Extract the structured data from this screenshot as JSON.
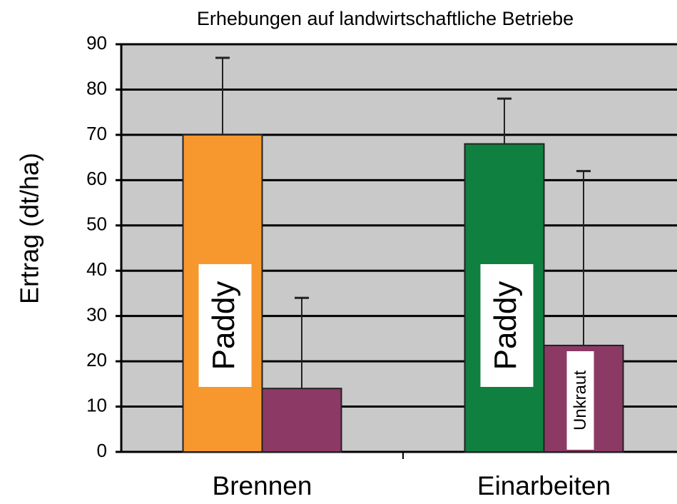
{
  "chart_data": {
    "type": "bar",
    "title": "Erhebungen auf landwirtschaftliche Betriebe",
    "y_label": "Ertrag (dt/ha)",
    "categories": [
      "Brennen",
      "Einarbeiten"
    ],
    "series": [
      {
        "name": "Paddy",
        "colors": [
          "#f7982f",
          "#0f8040"
        ],
        "values": [
          70,
          68
        ],
        "errors": [
          17,
          10
        ]
      },
      {
        "name": "Unkraut",
        "colors": [
          "#8c3a65",
          "#8c3a65"
        ],
        "values": [
          14,
          23.5
        ],
        "errors": [
          20,
          38.5
        ]
      }
    ],
    "ylim": [
      0,
      90
    ],
    "yticks": [
      0,
      10,
      20,
      30,
      40,
      50,
      60,
      70,
      80,
      90
    ],
    "grid": true
  }
}
